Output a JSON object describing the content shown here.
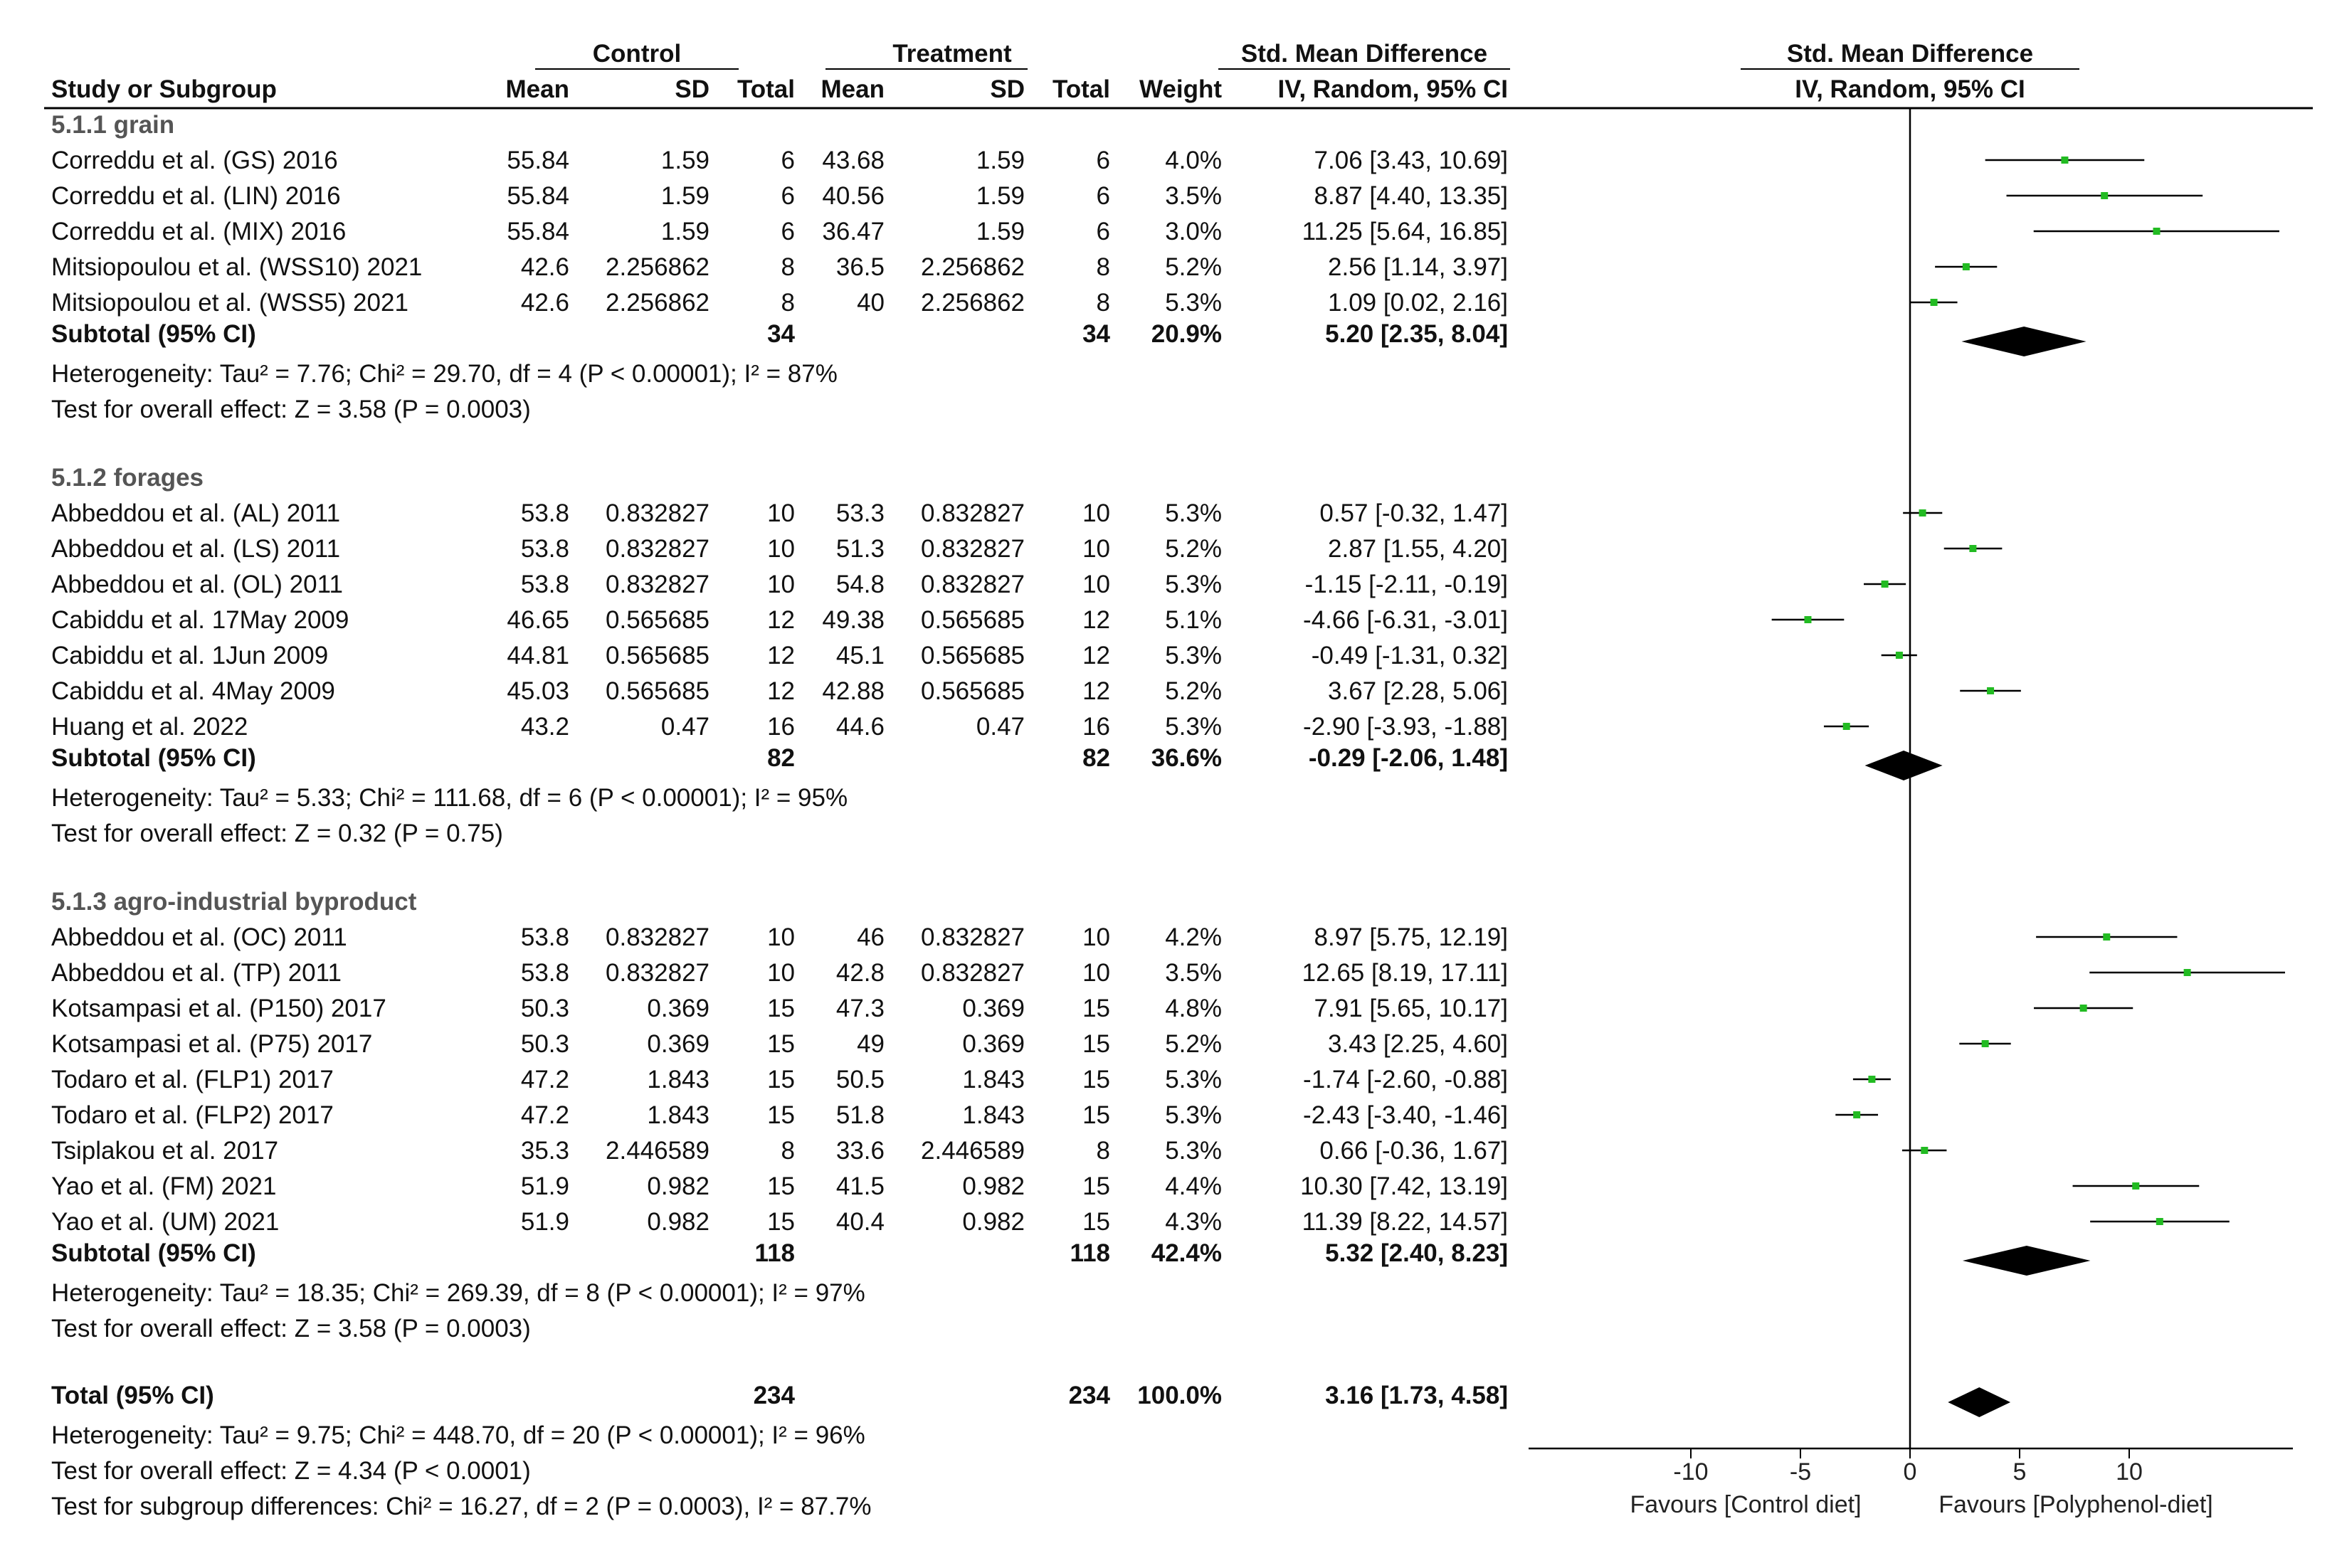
{
  "chart_data": {
    "type": "forest",
    "headers": {
      "control_group": "Control",
      "treatment_group": "Treatment",
      "smd_text": "Std. Mean Difference",
      "smd_plot": "Std. Mean Difference",
      "study": "Study or Subgroup",
      "mean_c": "Mean",
      "sd_c": "SD",
      "total_c": "Total",
      "mean_t": "Mean",
      "sd_t": "SD",
      "total_t": "Total",
      "weight": "Weight",
      "method_text": "IV, Random, 95% CI",
      "method_plot": "IV, Random, 95% CI"
    },
    "subgroups": [
      {
        "title": "5.1.1 grain",
        "studies": [
          {
            "name": "Correddu et al. (GS) 2016",
            "mean_c": "55.84",
            "sd_c": "1.59",
            "n_c": "6",
            "mean_t": "43.68",
            "sd_t": "1.59",
            "n_t": "6",
            "weight": "4.0%",
            "ci_text": "7.06 [3.43, 10.69]",
            "est": 7.06,
            "lo": 3.43,
            "hi": 10.69
          },
          {
            "name": "Correddu et al. (LIN) 2016",
            "mean_c": "55.84",
            "sd_c": "1.59",
            "n_c": "6",
            "mean_t": "40.56",
            "sd_t": "1.59",
            "n_t": "6",
            "weight": "3.5%",
            "ci_text": "8.87 [4.40, 13.35]",
            "est": 8.87,
            "lo": 4.4,
            "hi": 13.35
          },
          {
            "name": "Correddu et al. (MIX) 2016",
            "mean_c": "55.84",
            "sd_c": "1.59",
            "n_c": "6",
            "mean_t": "36.47",
            "sd_t": "1.59",
            "n_t": "6",
            "weight": "3.0%",
            "ci_text": "11.25 [5.64, 16.85]",
            "est": 11.25,
            "lo": 5.64,
            "hi": 16.85
          },
          {
            "name": "Mitsiopoulou et al. (WSS10) 2021",
            "mean_c": "42.6",
            "sd_c": "2.256862",
            "n_c": "8",
            "mean_t": "36.5",
            "sd_t": "2.256862",
            "n_t": "8",
            "weight": "5.2%",
            "ci_text": "2.56 [1.14, 3.97]",
            "est": 2.56,
            "lo": 1.14,
            "hi": 3.97
          },
          {
            "name": "Mitsiopoulou et al. (WSS5) 2021",
            "mean_c": "42.6",
            "sd_c": "2.256862",
            "n_c": "8",
            "mean_t": "40",
            "sd_t": "2.256862",
            "n_t": "8",
            "weight": "5.3%",
            "ci_text": "1.09 [0.02, 2.16]",
            "est": 1.09,
            "lo": 0.02,
            "hi": 2.16
          }
        ],
        "subtotal": {
          "label": "Subtotal (95% CI)",
          "n_c": "34",
          "n_t": "34",
          "weight": "20.9%",
          "ci_text": "5.20 [2.35, 8.04]",
          "est": 5.2,
          "lo": 2.35,
          "hi": 8.04
        },
        "heterogeneity": "Heterogeneity: Tau² = 7.76; Chi² = 29.70, df = 4 (P < 0.00001); I² = 87%",
        "overall": "Test for overall effect: Z = 3.58 (P = 0.0003)"
      },
      {
        "title": "5.1.2 forages",
        "studies": [
          {
            "name": "Abbeddou et al. (AL)  2011",
            "mean_c": "53.8",
            "sd_c": "0.832827",
            "n_c": "10",
            "mean_t": "53.3",
            "sd_t": "0.832827",
            "n_t": "10",
            "weight": "5.3%",
            "ci_text": "0.57 [-0.32, 1.47]",
            "est": 0.57,
            "lo": -0.32,
            "hi": 1.47
          },
          {
            "name": "Abbeddou et al. (LS)  2011",
            "mean_c": "53.8",
            "sd_c": "0.832827",
            "n_c": "10",
            "mean_t": "51.3",
            "sd_t": "0.832827",
            "n_t": "10",
            "weight": "5.2%",
            "ci_text": "2.87 [1.55, 4.20]",
            "est": 2.87,
            "lo": 1.55,
            "hi": 4.2
          },
          {
            "name": "Abbeddou et al. (OL)  2011",
            "mean_c": "53.8",
            "sd_c": "0.832827",
            "n_c": "10",
            "mean_t": "54.8",
            "sd_t": "0.832827",
            "n_t": "10",
            "weight": "5.3%",
            "ci_text": "-1.15 [-2.11, -0.19]",
            "est": -1.15,
            "lo": -2.11,
            "hi": -0.19
          },
          {
            "name": "Cabiddu et al. 17May 2009",
            "mean_c": "46.65",
            "sd_c": "0.565685",
            "n_c": "12",
            "mean_t": "49.38",
            "sd_t": "0.565685",
            "n_t": "12",
            "weight": "5.1%",
            "ci_text": "-4.66 [-6.31, -3.01]",
            "est": -4.66,
            "lo": -6.31,
            "hi": -3.01
          },
          {
            "name": "Cabiddu et al. 1Jun 2009",
            "mean_c": "44.81",
            "sd_c": "0.565685",
            "n_c": "12",
            "mean_t": "45.1",
            "sd_t": "0.565685",
            "n_t": "12",
            "weight": "5.3%",
            "ci_text": "-0.49 [-1.31, 0.32]",
            "est": -0.49,
            "lo": -1.31,
            "hi": 0.32
          },
          {
            "name": "Cabiddu et al. 4May 2009",
            "mean_c": "45.03",
            "sd_c": "0.565685",
            "n_c": "12",
            "mean_t": "42.88",
            "sd_t": "0.565685",
            "n_t": "12",
            "weight": "5.2%",
            "ci_text": "3.67 [2.28, 5.06]",
            "est": 3.67,
            "lo": 2.28,
            "hi": 5.06
          },
          {
            "name": "Huang et al. 2022",
            "mean_c": "43.2",
            "sd_c": "0.47",
            "n_c": "16",
            "mean_t": "44.6",
            "sd_t": "0.47",
            "n_t": "16",
            "weight": "5.3%",
            "ci_text": "-2.90 [-3.93, -1.88]",
            "est": -2.9,
            "lo": -3.93,
            "hi": -1.88
          }
        ],
        "subtotal": {
          "label": "Subtotal (95% CI)",
          "n_c": "82",
          "n_t": "82",
          "weight": "36.6%",
          "ci_text": "-0.29 [-2.06, 1.48]",
          "est": -0.29,
          "lo": -2.06,
          "hi": 1.48
        },
        "heterogeneity": "Heterogeneity: Tau² = 5.33; Chi² = 111.68, df = 6 (P < 0.00001); I² = 95%",
        "overall": "Test for overall effect: Z = 0.32 (P = 0.75)"
      },
      {
        "title": "5.1.3 agro-industrial byproduct",
        "studies": [
          {
            "name": "Abbeddou et al. (OC)  2011",
            "mean_c": "53.8",
            "sd_c": "0.832827",
            "n_c": "10",
            "mean_t": "46",
            "sd_t": "0.832827",
            "n_t": "10",
            "weight": "4.2%",
            "ci_text": "8.97 [5.75, 12.19]",
            "est": 8.97,
            "lo": 5.75,
            "hi": 12.19
          },
          {
            "name": "Abbeddou et al. (TP)  2011",
            "mean_c": "53.8",
            "sd_c": "0.832827",
            "n_c": "10",
            "mean_t": "42.8",
            "sd_t": "0.832827",
            "n_t": "10",
            "weight": "3.5%",
            "ci_text": "12.65 [8.19, 17.11]",
            "est": 12.65,
            "lo": 8.19,
            "hi": 17.11
          },
          {
            "name": "Kotsampasi et al. (P150) 2017",
            "mean_c": "50.3",
            "sd_c": "0.369",
            "n_c": "15",
            "mean_t": "47.3",
            "sd_t": "0.369",
            "n_t": "15",
            "weight": "4.8%",
            "ci_text": "7.91 [5.65, 10.17]",
            "est": 7.91,
            "lo": 5.65,
            "hi": 10.17
          },
          {
            "name": "Kotsampasi et al. (P75) 2017",
            "mean_c": "50.3",
            "sd_c": "0.369",
            "n_c": "15",
            "mean_t": "49",
            "sd_t": "0.369",
            "n_t": "15",
            "weight": "5.2%",
            "ci_text": "3.43 [2.25, 4.60]",
            "est": 3.43,
            "lo": 2.25,
            "hi": 4.6
          },
          {
            "name": "Todaro et al. (FLP1) 2017",
            "mean_c": "47.2",
            "sd_c": "1.843",
            "n_c": "15",
            "mean_t": "50.5",
            "sd_t": "1.843",
            "n_t": "15",
            "weight": "5.3%",
            "ci_text": "-1.74 [-2.60, -0.88]",
            "est": -1.74,
            "lo": -2.6,
            "hi": -0.88
          },
          {
            "name": "Todaro et al. (FLP2) 2017",
            "mean_c": "47.2",
            "sd_c": "1.843",
            "n_c": "15",
            "mean_t": "51.8",
            "sd_t": "1.843",
            "n_t": "15",
            "weight": "5.3%",
            "ci_text": "-2.43 [-3.40, -1.46]",
            "est": -2.43,
            "lo": -3.4,
            "hi": -1.46
          },
          {
            "name": "Tsiplakou et al. 2017",
            "mean_c": "35.3",
            "sd_c": "2.446589",
            "n_c": "8",
            "mean_t": "33.6",
            "sd_t": "2.446589",
            "n_t": "8",
            "weight": "5.3%",
            "ci_text": "0.66 [-0.36, 1.67]",
            "est": 0.66,
            "lo": -0.36,
            "hi": 1.67
          },
          {
            "name": "Yao et al. (FM) 2021",
            "mean_c": "51.9",
            "sd_c": "0.982",
            "n_c": "15",
            "mean_t": "41.5",
            "sd_t": "0.982",
            "n_t": "15",
            "weight": "4.4%",
            "ci_text": "10.30 [7.42, 13.19]",
            "est": 10.3,
            "lo": 7.42,
            "hi": 13.19
          },
          {
            "name": "Yao et al. (UM) 2021",
            "mean_c": "51.9",
            "sd_c": "0.982",
            "n_c": "15",
            "mean_t": "40.4",
            "sd_t": "0.982",
            "n_t": "15",
            "weight": "4.3%",
            "ci_text": "11.39 [8.22, 14.57]",
            "est": 11.39,
            "lo": 8.22,
            "hi": 14.57
          }
        ],
        "subtotal": {
          "label": "Subtotal (95% CI)",
          "n_c": "118",
          "n_t": "118",
          "weight": "42.4%",
          "ci_text": "5.32 [2.40, 8.23]",
          "est": 5.32,
          "lo": 2.4,
          "hi": 8.23
        },
        "heterogeneity": "Heterogeneity: Tau² = 18.35; Chi² = 269.39, df = 8 (P < 0.00001); I² = 97%",
        "overall": "Test for overall effect: Z = 3.58 (P = 0.0003)"
      }
    ],
    "total": {
      "label": "Total (95% CI)",
      "n_c": "234",
      "n_t": "234",
      "weight": "100.0%",
      "ci_text": "3.16 [1.73, 4.58]",
      "est": 3.16,
      "lo": 1.73,
      "hi": 4.58
    },
    "footer": [
      "Heterogeneity: Tau² = 9.75; Chi² = 448.70, df = 20 (P < 0.00001); I² = 96%",
      "Test for overall effect: Z = 4.34 (P < 0.0001)",
      "Test for subgroup differences: Chi² = 16.27, df = 2 (P = 0.0003), I² = 87.7%"
    ],
    "x_axis": {
      "ticks": [
        -10,
        -5,
        0,
        5,
        10
      ],
      "tick_labels": [
        "-10",
        "-5",
        "0",
        "5",
        "10"
      ],
      "xlim": [
        -17.7,
        17.7
      ],
      "favours_left": "Favours [Control diet]",
      "favours_right": "Favours [Polyphenol-diet]"
    },
    "colors": {
      "point": "#22bb22",
      "line": "#000000",
      "diamond": "#000000"
    }
  }
}
